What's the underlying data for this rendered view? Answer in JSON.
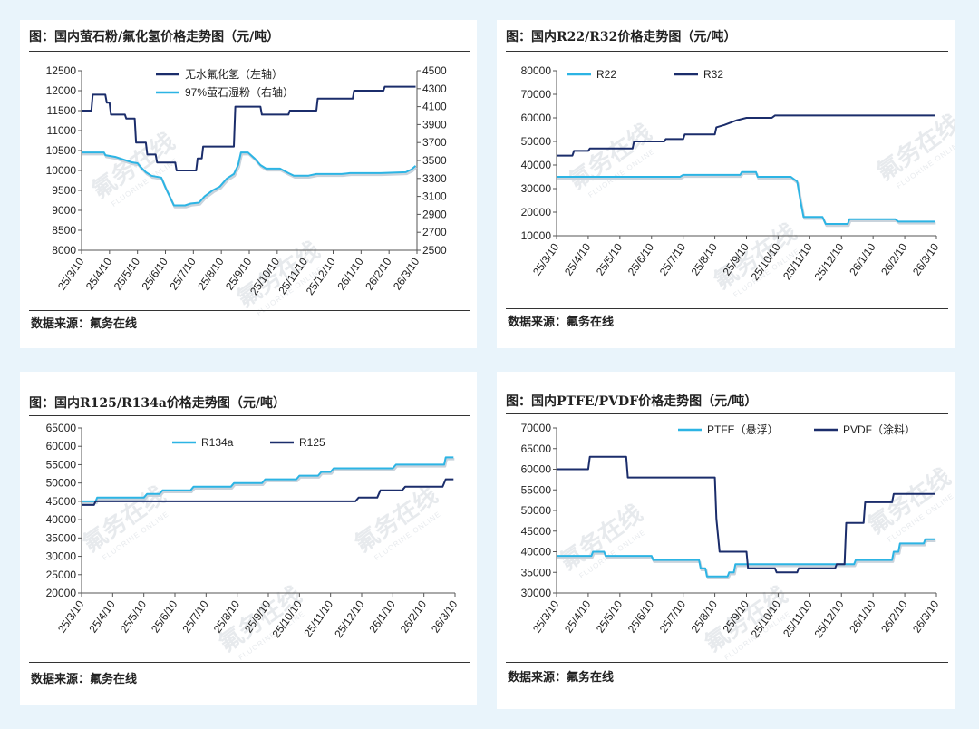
{
  "colors": {
    "light": "#2cb4e4",
    "dark": "#1b2d6b",
    "background": "#e9f4fb"
  },
  "watermark": {
    "cn": "氟务在线",
    "en": "FLUORINE ONLINE"
  },
  "dates": [
    "25/3/10",
    "25/4/10",
    "25/5/10",
    "25/6/10",
    "25/7/10",
    "25/8/10",
    "25/9/10",
    "25/10/10",
    "25/11/10",
    "25/12/10",
    "26/1/10",
    "26/2/10",
    "26/3/10"
  ],
  "panels": [
    {
      "title": "图：国内萤石粉/氟化氢价格走势图（元/吨）",
      "source": "数据来源：氟务在线"
    },
    {
      "title": "图：国内R22/R32价格走势图（元/吨）",
      "source": "数据来源：氟务在线"
    },
    {
      "title": "图：国内R125/R134a价格走势图（元/吨）",
      "source": "数据来源：氟务在线"
    },
    {
      "title": "图：国内PTFE/PVDF价格走势图（元/吨）",
      "source": "数据来源：氟务在线"
    }
  ],
  "chart_data": [
    {
      "type": "line",
      "title": "国内萤石粉/氟化氢价格走势图（元/吨）",
      "x_range": [
        0,
        12
      ],
      "y_left": {
        "min": 8000,
        "max": 12500,
        "step": 500
      },
      "y_right": {
        "min": 2500,
        "max": 4500,
        "step": 200
      },
      "legend_position": "top-left",
      "series": [
        {
          "name": "无水氟化氢（左轴）",
          "axis": "left",
          "color": "dark",
          "points": [
            [
              0,
              11500
            ],
            [
              0.35,
              11500
            ],
            [
              0.4,
              11900
            ],
            [
              0.85,
              11900
            ],
            [
              0.9,
              11700
            ],
            [
              1.0,
              11700
            ],
            [
              1.05,
              11400
            ],
            [
              1.55,
              11400
            ],
            [
              1.6,
              11300
            ],
            [
              1.9,
              11300
            ],
            [
              1.95,
              10700
            ],
            [
              2.3,
              10700
            ],
            [
              2.35,
              10400
            ],
            [
              2.65,
              10400
            ],
            [
              2.7,
              10200
            ],
            [
              3.35,
              10200
            ],
            [
              3.4,
              10000
            ],
            [
              4.1,
              10000
            ],
            [
              4.15,
              10300
            ],
            [
              4.3,
              10300
            ],
            [
              4.35,
              10600
            ],
            [
              5.45,
              10600
            ],
            [
              5.5,
              11600
            ],
            [
              6.4,
              11600
            ],
            [
              6.45,
              11400
            ],
            [
              7.4,
              11400
            ],
            [
              7.45,
              11500
            ],
            [
              8.4,
              11500
            ],
            [
              8.45,
              11800
            ],
            [
              9.7,
              11800
            ],
            [
              9.75,
              12000
            ],
            [
              10.8,
              12000
            ],
            [
              10.85,
              12100
            ],
            [
              11.95,
              12100
            ]
          ]
        },
        {
          "name": "97%萤石湿粉（右轴）",
          "axis": "right",
          "color": "light",
          "points": [
            [
              0,
              3590
            ],
            [
              0.8,
              3590
            ],
            [
              0.85,
              3560
            ],
            [
              1.2,
              3540
            ],
            [
              1.4,
              3520
            ],
            [
              1.6,
              3500
            ],
            [
              1.8,
              3480
            ],
            [
              2.0,
              3470
            ],
            [
              2.1,
              3430
            ],
            [
              2.3,
              3370
            ],
            [
              2.5,
              3330
            ],
            [
              2.85,
              3310
            ],
            [
              3.0,
              3200
            ],
            [
              3.3,
              3000
            ],
            [
              3.7,
              3000
            ],
            [
              3.9,
              3020
            ],
            [
              4.2,
              3030
            ],
            [
              4.4,
              3100
            ],
            [
              4.7,
              3170
            ],
            [
              4.95,
              3210
            ],
            [
              5.2,
              3300
            ],
            [
              5.45,
              3350
            ],
            [
              5.6,
              3450
            ],
            [
              5.7,
              3590
            ],
            [
              5.95,
              3590
            ],
            [
              6.2,
              3520
            ],
            [
              6.4,
              3450
            ],
            [
              6.6,
              3410
            ],
            [
              7.1,
              3410
            ],
            [
              7.4,
              3360
            ],
            [
              7.6,
              3330
            ],
            [
              8.1,
              3330
            ],
            [
              8.4,
              3350
            ],
            [
              9.3,
              3350
            ],
            [
              9.6,
              3360
            ],
            [
              10.7,
              3360
            ],
            [
              11.6,
              3370
            ],
            [
              11.8,
              3400
            ],
            [
              11.95,
              3440
            ]
          ]
        }
      ]
    },
    {
      "type": "line",
      "title": "国内R22/R32价格走势图（元/吨）",
      "x_range": [
        0,
        12
      ],
      "y_left": {
        "min": 10000,
        "max": 80000,
        "step": 10000
      },
      "legend_position": "top-left",
      "series": [
        {
          "name": "R22",
          "color": "light",
          "points": [
            [
              0,
              35000
            ],
            [
              3.9,
              35000
            ],
            [
              4.0,
              35800
            ],
            [
              5.8,
              35800
            ],
            [
              5.85,
              37000
            ],
            [
              6.3,
              37000
            ],
            [
              6.35,
              35000
            ],
            [
              7.4,
              35000
            ],
            [
              7.6,
              33000
            ],
            [
              7.7,
              25000
            ],
            [
              7.8,
              18000
            ],
            [
              8.4,
              18000
            ],
            [
              8.5,
              15000
            ],
            [
              9.2,
              15000
            ],
            [
              9.25,
              17000
            ],
            [
              10.7,
              17000
            ],
            [
              10.8,
              16000
            ],
            [
              11.95,
              16000
            ]
          ]
        },
        {
          "name": "R32",
          "color": "dark",
          "points": [
            [
              0,
              44000
            ],
            [
              0.5,
              44000
            ],
            [
              0.55,
              46000
            ],
            [
              1.0,
              46000
            ],
            [
              1.05,
              47000
            ],
            [
              2.4,
              47000
            ],
            [
              2.45,
              50000
            ],
            [
              3.4,
              50000
            ],
            [
              3.45,
              51000
            ],
            [
              4.0,
              51000
            ],
            [
              4.05,
              53000
            ],
            [
              5.0,
              53000
            ],
            [
              5.05,
              56000
            ],
            [
              5.3,
              57000
            ],
            [
              5.5,
              58000
            ],
            [
              5.7,
              59000
            ],
            [
              6.0,
              60000
            ],
            [
              6.8,
              60000
            ],
            [
              6.9,
              61000
            ],
            [
              11.95,
              61000
            ]
          ]
        }
      ]
    },
    {
      "type": "line",
      "title": "国内R125/R134a价格走势图（元/吨）",
      "x_range": [
        0,
        12
      ],
      "y_left": {
        "min": 20000,
        "max": 65000,
        "step": 5000
      },
      "legend_position": "top-center",
      "series": [
        {
          "name": "R134a",
          "color": "light",
          "points": [
            [
              0,
              45000
            ],
            [
              0.45,
              45000
            ],
            [
              0.5,
              46000
            ],
            [
              2.0,
              46000
            ],
            [
              2.1,
              47000
            ],
            [
              2.5,
              47000
            ],
            [
              2.6,
              48000
            ],
            [
              3.5,
              48000
            ],
            [
              3.6,
              49000
            ],
            [
              4.8,
              49000
            ],
            [
              4.9,
              50000
            ],
            [
              5.8,
              50000
            ],
            [
              5.9,
              51000
            ],
            [
              6.9,
              51000
            ],
            [
              7.0,
              52000
            ],
            [
              7.6,
              52000
            ],
            [
              7.7,
              53000
            ],
            [
              8.0,
              53000
            ],
            [
              8.1,
              54000
            ],
            [
              10.0,
              54000
            ],
            [
              10.1,
              55000
            ],
            [
              11.65,
              55000
            ],
            [
              11.7,
              57000
            ],
            [
              11.95,
              57000
            ]
          ]
        },
        {
          "name": "R125",
          "color": "dark",
          "points": [
            [
              0,
              44000
            ],
            [
              0.4,
              44000
            ],
            [
              0.45,
              45000
            ],
            [
              8.8,
              45000
            ],
            [
              8.9,
              46000
            ],
            [
              9.5,
              46000
            ],
            [
              9.6,
              48000
            ],
            [
              10.3,
              48000
            ],
            [
              10.4,
              49000
            ],
            [
              11.6,
              49000
            ],
            [
              11.7,
              51000
            ],
            [
              11.95,
              51000
            ]
          ]
        }
      ]
    },
    {
      "type": "line",
      "title": "国内PTFE/PVDF价格走势图（元/吨）",
      "x_range": [
        0,
        12
      ],
      "y_left": {
        "min": 30000,
        "max": 70000,
        "step": 5000
      },
      "legend_position": "top-center",
      "series": [
        {
          "name": "PTFE（悬浮）",
          "color": "light",
          "points": [
            [
              0,
              39000
            ],
            [
              1.1,
              39000
            ],
            [
              1.15,
              40000
            ],
            [
              1.5,
              40000
            ],
            [
              1.55,
              39000
            ],
            [
              3.0,
              39000
            ],
            [
              3.05,
              38000
            ],
            [
              4.5,
              38000
            ],
            [
              4.55,
              36000
            ],
            [
              4.7,
              36000
            ],
            [
              4.75,
              34000
            ],
            [
              5.4,
              34000
            ],
            [
              5.45,
              35000
            ],
            [
              5.6,
              35000
            ],
            [
              5.65,
              37000
            ],
            [
              9.4,
              37000
            ],
            [
              9.45,
              38000
            ],
            [
              10.6,
              38000
            ],
            [
              10.65,
              40000
            ],
            [
              10.8,
              40000
            ],
            [
              10.85,
              42000
            ],
            [
              11.6,
              42000
            ],
            [
              11.65,
              43000
            ],
            [
              11.95,
              43000
            ]
          ]
        },
        {
          "name": "PVDF（涂料）",
          "color": "dark",
          "points": [
            [
              0,
              60000
            ],
            [
              1.0,
              60000
            ],
            [
              1.05,
              63000
            ],
            [
              2.2,
              63000
            ],
            [
              2.25,
              58000
            ],
            [
              5.0,
              58000
            ],
            [
              5.05,
              48000
            ],
            [
              5.15,
              40000
            ],
            [
              6.0,
              40000
            ],
            [
              6.05,
              36000
            ],
            [
              6.9,
              36000
            ],
            [
              6.95,
              35000
            ],
            [
              7.6,
              35000
            ],
            [
              7.65,
              36000
            ],
            [
              8.8,
              36000
            ],
            [
              8.85,
              37000
            ],
            [
              9.1,
              37000
            ],
            [
              9.15,
              47000
            ],
            [
              9.7,
              47000
            ],
            [
              9.75,
              52000
            ],
            [
              10.6,
              52000
            ],
            [
              10.65,
              54000
            ],
            [
              11.95,
              54000
            ]
          ]
        }
      ]
    }
  ]
}
